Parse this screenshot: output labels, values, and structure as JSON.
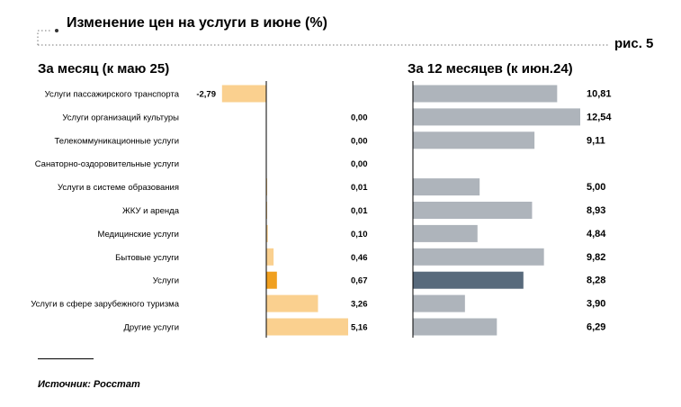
{
  "header": {
    "title": "Изменение цен на услуги в июне (%)",
    "figure_label": "рис. 5"
  },
  "chart_data": [
    {
      "type": "bar",
      "orientation": "horizontal",
      "title": "За месяц (к маю 25)",
      "categories": [
        "Услуги пассажирского транспорта",
        "Услуги организаций культуры",
        "Телекоммуникационные услуги",
        "Санаторно-оздоровительные услуги",
        "Услуги в системе образования",
        "ЖКУ и аренда",
        "Медицинские услуги",
        "Бытовые услуги",
        "Услуги",
        "Услуги в сфере зарубежного туризма",
        "Другие услуги"
      ],
      "values": [
        -2.79,
        0.0,
        0.0,
        0.0,
        0.01,
        0.01,
        0.1,
        0.46,
        0.67,
        3.26,
        5.16
      ],
      "value_labels": [
        "-2,79",
        "0,00",
        "0,00",
        "0,00",
        "0,01",
        "0,01",
        "0,10",
        "0,46",
        "0,67",
        "3,26",
        "5,16"
      ],
      "xlim": [
        -2.79,
        5.16
      ],
      "grid": false,
      "colors": {
        "bar": "#fad08f",
        "highlight": "#f0a020",
        "axis": "#000000"
      },
      "highlight_index": 8
    },
    {
      "type": "bar",
      "orientation": "horizontal",
      "title": "За 12 месяцев (к июн.24)",
      "categories": [
        "Услуги пассажирского транспорта",
        "Услуги организаций культуры",
        "Телекоммуникационные услуги",
        "Санаторно-оздоровительные услуги",
        "Услуги в системе образования",
        "ЖКУ и аренда",
        "Медицинские услуги",
        "Бытовые услуги",
        "Услуги",
        "Услуги в сфере зарубежного туризма",
        "Другие услуги"
      ],
      "values": [
        10.81,
        12.54,
        9.11,
        null,
        5.0,
        8.93,
        4.84,
        9.82,
        8.28,
        3.9,
        6.29
      ],
      "value_labels": [
        "10,81",
        "12,54",
        "9,11",
        "",
        "5,00",
        "8,93",
        "4,84",
        "9,82",
        "8,28",
        "3,90",
        "6,29"
      ],
      "xlim": [
        0,
        12.54
      ],
      "grid": false,
      "colors": {
        "bar": "#aeb4bb",
        "highlight": "#586a7c",
        "axis": "#000000"
      },
      "highlight_index": 8
    }
  ],
  "source": "Источник: Росстат"
}
